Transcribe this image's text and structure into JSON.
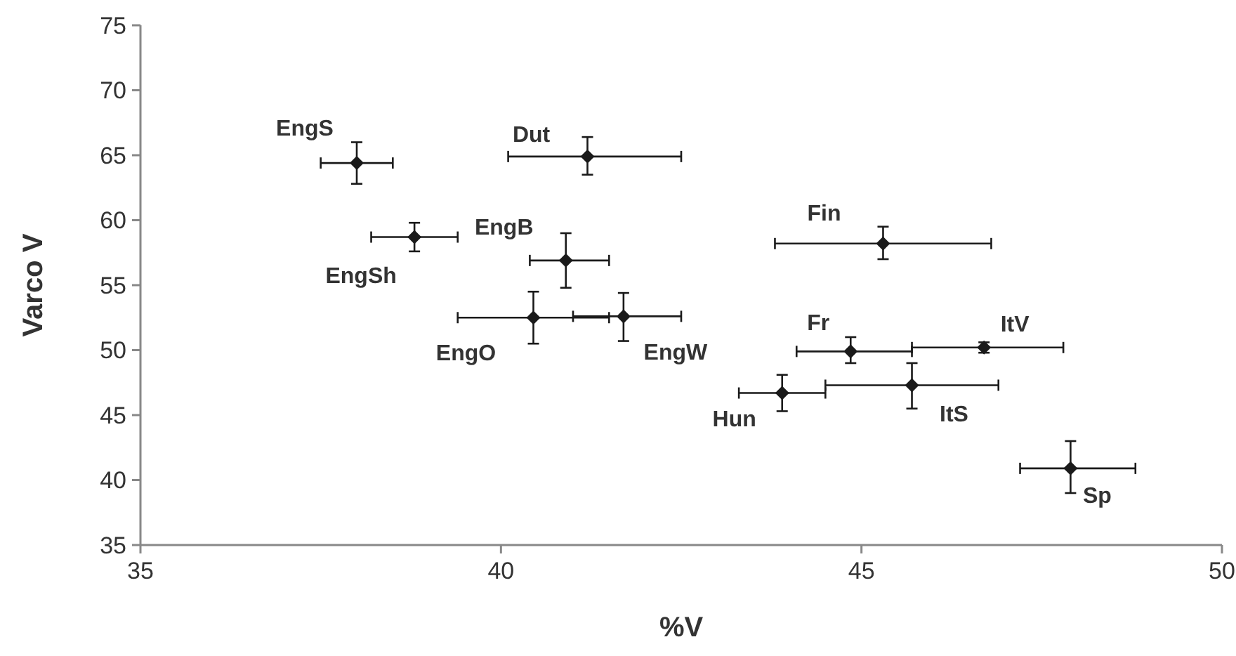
{
  "chart_data": {
    "type": "scatter",
    "xlabel": "%V",
    "ylabel": "Varco V",
    "xlim": [
      35,
      50
    ],
    "xticks": [
      35,
      40,
      45,
      50
    ],
    "ylim": [
      35,
      75
    ],
    "yticks": [
      35,
      40,
      45,
      50,
      55,
      60,
      65,
      70,
      75
    ],
    "marker": "diamond",
    "grid": false,
    "series": [
      {
        "color": "#1a1a1a",
        "x": [
          38.0,
          41.2,
          38.8,
          40.9,
          40.45,
          41.7,
          45.3,
          44.85,
          46.7,
          43.9,
          45.7,
          47.9
        ],
        "values": [
          64.4,
          64.9,
          58.7,
          56.9,
          52.5,
          52.6,
          58.2,
          49.9,
          50.2,
          46.7,
          47.3,
          40.9
        ],
        "errors": [
          [
            62.8,
            66.0
          ],
          [
            63.5,
            66.4
          ],
          [
            57.6,
            59.8
          ],
          [
            54.8,
            59.0
          ],
          [
            50.5,
            54.5
          ],
          [
            50.7,
            54.4
          ],
          [
            57.0,
            59.5
          ],
          [
            49.0,
            51.0
          ],
          [
            49.8,
            50.6
          ],
          [
            45.3,
            48.1
          ],
          [
            45.5,
            49.0
          ],
          [
            39.0,
            43.0
          ]
        ],
        "xerrors": [
          [
            37.5,
            38.5
          ],
          [
            40.1,
            42.5
          ],
          [
            38.2,
            39.4
          ],
          [
            40.4,
            41.5
          ],
          [
            39.4,
            41.5
          ],
          [
            41.0,
            42.5
          ],
          [
            43.8,
            46.8
          ],
          [
            44.1,
            45.7
          ],
          [
            45.7,
            47.8
          ],
          [
            43.3,
            44.5
          ],
          [
            44.5,
            46.9
          ],
          [
            47.2,
            48.8
          ]
        ]
      }
    ],
    "annotations": [
      {
        "text": "EngS",
        "x": 38.0,
        "y": 64.4
      },
      {
        "text": "Dut",
        "x": 41.2,
        "y": 64.9
      },
      {
        "text": "EngSh",
        "x": 38.8,
        "y": 58.7
      },
      {
        "text": "EngB",
        "x": 40.9,
        "y": 56.9
      },
      {
        "text": "EngO",
        "x": 40.45,
        "y": 52.5
      },
      {
        "text": "EngW",
        "x": 41.7,
        "y": 52.6
      },
      {
        "text": "Fin",
        "x": 45.3,
        "y": 58.2
      },
      {
        "text": "Fr",
        "x": 44.85,
        "y": 49.9
      },
      {
        "text": "ItV",
        "x": 46.7,
        "y": 50.2
      },
      {
        "text": "Hun",
        "x": 43.9,
        "y": 46.7
      },
      {
        "text": "ItS",
        "x": 45.7,
        "y": 47.3
      },
      {
        "text": "Sp",
        "x": 47.9,
        "y": 40.9
      }
    ]
  }
}
